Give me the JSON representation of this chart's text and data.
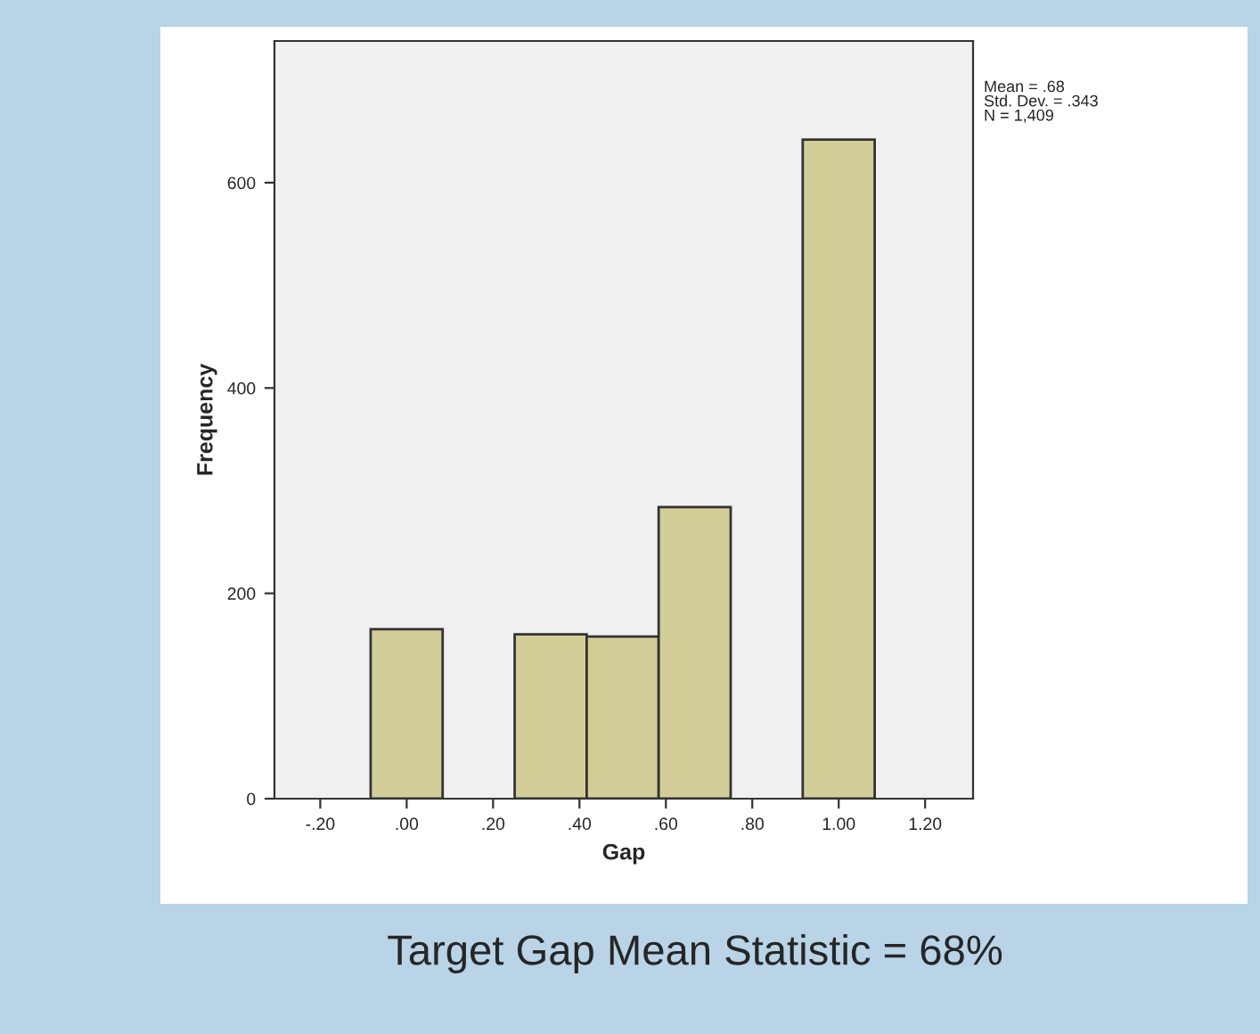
{
  "chart_data": {
    "type": "histogram",
    "xlabel": "Gap",
    "ylabel": "Frequency",
    "bins": [
      -0.0833,
      0.0833,
      0.25,
      0.4167,
      0.5833,
      0.75,
      0.9167,
      1.0833
    ],
    "values": [
      165,
      0,
      160,
      158,
      284,
      0,
      642
    ],
    "color": "#d3ce98",
    "xlim": [
      -0.306,
      1.311
    ],
    "xticks": [
      {
        "value": -0.2,
        "label": "-.20"
      },
      {
        "value": 0,
        "label": ".00"
      },
      {
        "value": 0.2,
        "label": ".20"
      },
      {
        "value": 0.4,
        "label": ".40"
      },
      {
        "value": 0.6,
        "label": ".60"
      },
      {
        "value": 0.8,
        "label": ".80"
      },
      {
        "value": 1.0,
        "label": "1.00"
      },
      {
        "value": 1.2,
        "label": "1.20"
      }
    ],
    "ylim": [
      0,
      738
    ],
    "yticks": [
      0,
      200,
      400,
      600
    ],
    "grid": false,
    "annotations": [
      "Mean = .68\nStd. Dev. = .343\nN = 1,409",
      "Target Gap Mean Statistic = 68%"
    ]
  }
}
